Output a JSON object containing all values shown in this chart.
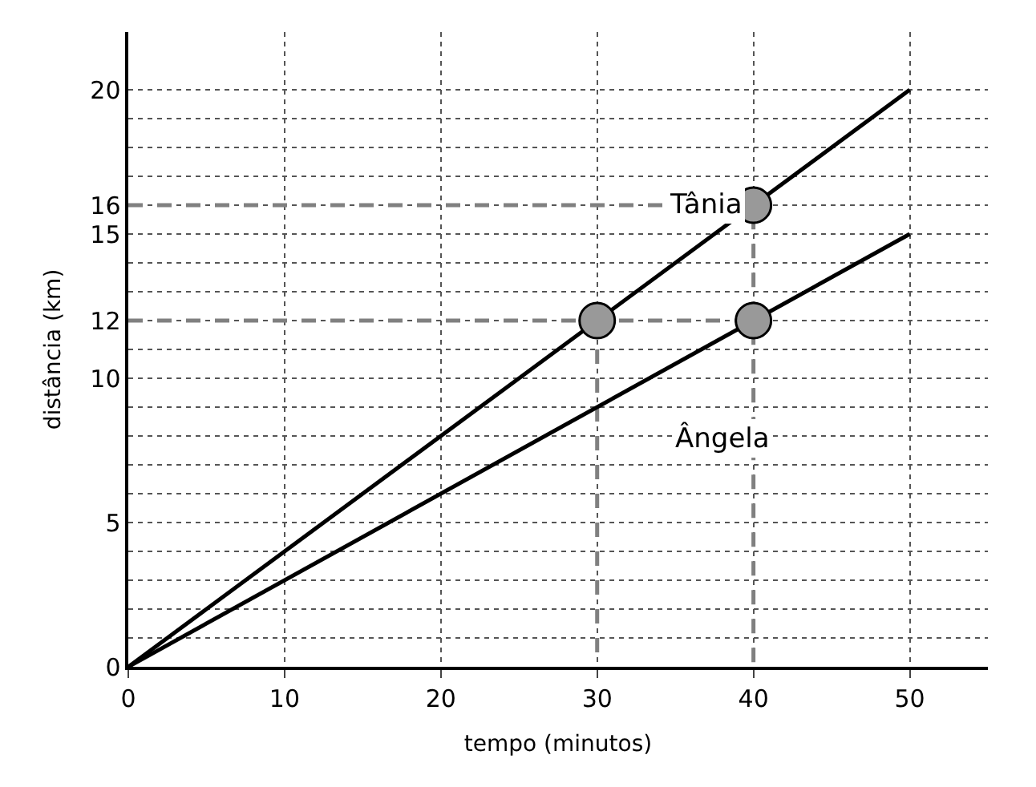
{
  "chart_data": {
    "type": "line",
    "xlabel": "tempo (minutos)",
    "ylabel": "distância (km)",
    "xlim": [
      0,
      55
    ],
    "ylim": [
      0,
      22
    ],
    "xticks": [
      0,
      10,
      20,
      30,
      40,
      50
    ],
    "yticks": [
      0,
      {
        "value": 1,
        "label": null
      },
      {
        "value": 2,
        "label": null
      },
      {
        "value": 3,
        "label": null
      },
      {
        "value": 4,
        "label": null
      },
      5,
      {
        "value": 6,
        "label": null
      },
      {
        "value": 7,
        "label": null
      },
      {
        "value": 8,
        "label": null
      },
      {
        "value": 9,
        "label": null
      },
      10,
      {
        "value": 11,
        "label": null
      },
      12,
      {
        "value": 13,
        "label": null
      },
      {
        "value": 14,
        "label": null
      },
      15,
      16,
      {
        "value": 17,
        "label": null
      },
      {
        "value": 18,
        "label": null
      },
      {
        "value": 19,
        "label": null
      },
      20
    ],
    "grid": true,
    "legend": false,
    "series": [
      {
        "name": "Tânia",
        "color": "#000000",
        "x": [
          0,
          50
        ],
        "values": [
          0,
          20
        ],
        "marker": "none",
        "line_style": "solid"
      },
      {
        "name": "Ângela",
        "color": "#000000",
        "x": [
          0,
          50
        ],
        "values": [
          0,
          15
        ],
        "marker": "none",
        "line_style": "solid"
      },
      {
        "color": "#808080",
        "x": [
          0,
          40,
          40
        ],
        "values": [
          16,
          16,
          0
        ],
        "marker": "none",
        "line_style": "dashed"
      },
      {
        "color": "#808080",
        "x": [
          0,
          40
        ],
        "values": [
          12,
          12
        ],
        "marker": "none",
        "line_style": "dashed"
      },
      {
        "color": "#808080",
        "x": [
          30,
          30
        ],
        "values": [
          12,
          0
        ],
        "marker": "none",
        "line_style": "dashed"
      },
      {
        "type": "scatter",
        "color": "#999999",
        "x": [
          30,
          40,
          40
        ],
        "values": [
          12,
          16,
          12
        ],
        "marker": "circle"
      }
    ]
  }
}
